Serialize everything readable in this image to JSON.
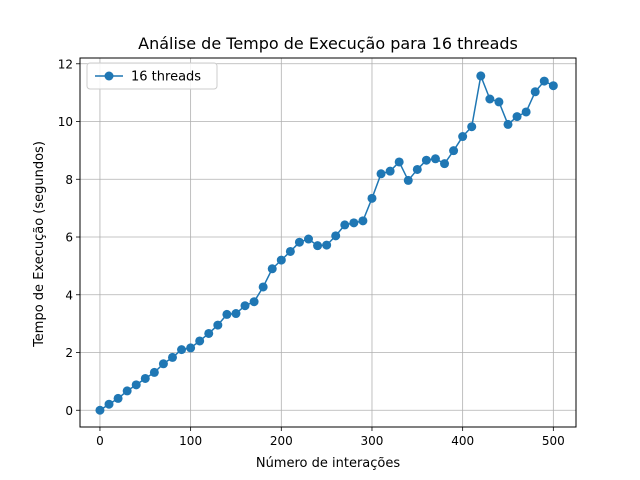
{
  "chart_data": {
    "type": "line",
    "title": "Análise de Tempo de Execução para 16 threads",
    "xlabel": "Número de interações",
    "ylabel": "Tempo de Execução (segundos)",
    "xlim": [
      -22,
      525
    ],
    "ylim": [
      -0.58,
      12.2
    ],
    "xticks": [
      0,
      100,
      200,
      300,
      400,
      500
    ],
    "yticks": [
      0,
      2,
      4,
      6,
      8,
      10,
      12
    ],
    "grid": true,
    "legend_position": "top-left",
    "colors": {
      "series": "#1f77b4",
      "grid": "#b0b0b0",
      "frame": "#000000",
      "legend_border": "#cccccc"
    },
    "series": [
      {
        "name": "16 threads",
        "marker": "circle",
        "x": [
          0,
          10,
          20,
          30,
          40,
          50,
          60,
          70,
          80,
          90,
          100,
          110,
          120,
          130,
          140,
          150,
          160,
          170,
          180,
          190,
          200,
          210,
          220,
          230,
          240,
          250,
          260,
          270,
          280,
          290,
          300,
          310,
          320,
          330,
          340,
          350,
          360,
          370,
          380,
          390,
          400,
          410,
          420,
          430,
          440,
          450,
          460,
          470,
          480,
          490,
          500
        ],
        "values": [
          0.0,
          0.21,
          0.41,
          0.67,
          0.88,
          1.1,
          1.31,
          1.61,
          1.83,
          2.1,
          2.16,
          2.4,
          2.66,
          2.95,
          3.32,
          3.35,
          3.62,
          3.76,
          4.27,
          4.9,
          5.2,
          5.5,
          5.82,
          5.93,
          5.7,
          5.72,
          6.04,
          6.42,
          6.49,
          6.56,
          7.34,
          8.19,
          8.28,
          8.6,
          7.96,
          8.34,
          8.66,
          8.71,
          8.54,
          8.99,
          9.48,
          9.82,
          11.58,
          10.78,
          10.68,
          9.9,
          10.17,
          10.33,
          11.03,
          11.4,
          11.24
        ]
      }
    ]
  }
}
